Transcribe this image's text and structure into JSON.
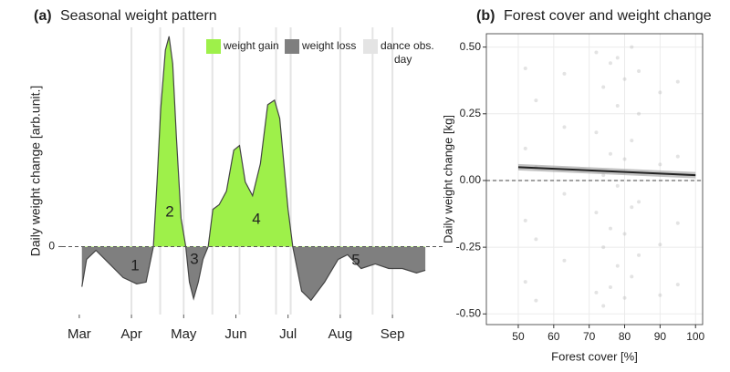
{
  "chart_data": [
    {
      "type": "area",
      "panel": "(a)",
      "title": "Seasonal weight pattern",
      "y_label": "Daily weight change [arb.unit.]",
      "x": [
        3.05,
        3.14,
        3.32,
        3.58,
        3.84,
        4.1,
        4.28,
        4.42,
        4.49,
        4.56,
        4.65,
        4.72,
        4.79,
        4.86,
        4.95,
        5.04,
        5.11,
        5.19,
        5.28,
        5.37,
        5.47,
        5.56,
        5.68,
        5.82,
        5.96,
        6.07,
        6.18,
        6.32,
        6.47,
        6.61,
        6.74,
        6.84,
        7.0,
        7.09,
        7.26,
        7.44,
        7.7,
        7.96,
        8.14,
        8.4,
        8.67,
        8.93,
        9.19,
        9.46,
        9.63
      ],
      "values": [
        -18.3,
        -5.8,
        -1.7,
        -7.9,
        -14.1,
        -17,
        -16.2,
        0,
        29.5,
        62.7,
        89.6,
        95.9,
        83.4,
        50.2,
        12.9,
        0,
        -16.2,
        -23.7,
        -16.2,
        -5.8,
        0,
        17,
        19.1,
        25.3,
        44,
        46.1,
        29.5,
        23.2,
        37.8,
        64.7,
        66.8,
        58.5,
        17,
        0,
        -20.3,
        -24.5,
        -16.2,
        -5.8,
        -3.7,
        -10,
        -7.9,
        -10,
        -10,
        -12,
        -10.8
      ],
      "series": [
        {
          "name": "weight gain",
          "color": "#9ef04a"
        },
        {
          "name": "weight loss",
          "color": "#7f7f7f"
        }
      ],
      "dance_days": [
        4.0,
        4.55,
        5.0,
        5.55,
        6.07,
        6.77,
        7.05,
        8.0,
        8.62,
        9.0
      ],
      "dance_label": "dance obs. day",
      "dance_color": "#e4e4e4",
      "annotations": [
        "1",
        "2",
        "3",
        "4",
        "5"
      ],
      "xlim": [
        2.67,
        9.96
      ],
      "xticks": [
        {
          "value": 3,
          "label": "Mar"
        },
        {
          "value": 4,
          "label": "Apr"
        },
        {
          "value": 5,
          "label": "May"
        },
        {
          "value": 6,
          "label": "Jun"
        },
        {
          "value": 7,
          "label": "Jul"
        },
        {
          "value": 8,
          "label": "Aug"
        },
        {
          "value": 9,
          "label": "Sep"
        }
      ],
      "ylim": [
        -31,
        100
      ],
      "yticks": [
        0
      ]
    },
    {
      "type": "scatter",
      "panel": "(b)",
      "title": "Forest cover and weight change",
      "x_label": "Forest cover [%]",
      "y_label": "Daily weight change [kg]",
      "x": [
        52,
        52,
        52,
        52,
        55,
        55,
        55,
        55,
        63,
        63,
        63,
        63,
        72,
        72,
        72,
        72,
        74,
        74,
        74,
        74,
        76,
        76,
        76,
        76,
        78,
        78,
        78,
        78,
        80,
        80,
        80,
        80,
        82,
        82,
        82,
        82,
        84,
        84,
        84,
        84,
        90,
        90,
        90,
        90,
        95,
        95,
        95,
        95
      ],
      "y": [
        0.42,
        0.12,
        -0.15,
        -0.38,
        0.3,
        0.05,
        -0.22,
        -0.45,
        0.2,
        -0.05,
        -0.3,
        0.4,
        0.48,
        0.18,
        -0.12,
        -0.42,
        0.35,
        0.02,
        -0.25,
        -0.47,
        0.44,
        0.1,
        -0.18,
        -0.4,
        0.28,
        -0.02,
        -0.32,
        0.46,
        0.38,
        0.08,
        -0.2,
        -0.44,
        0.5,
        0.15,
        -0.1,
        -0.36,
        0.25,
        -0.08,
        -0.28,
        0.41,
        0.33,
        0.06,
        -0.24,
        -0.43,
        0.37,
        0.09,
        -0.16,
        -0.39
      ],
      "color": "#b0b0b0",
      "fit": {
        "x": [
          50,
          100
        ],
        "y": [
          0.05,
          0.02
        ],
        "band": 0.012,
        "color": "#222222"
      },
      "xlim": [
        41,
        102
      ],
      "xticks": [
        50,
        60,
        70,
        80,
        90,
        100
      ],
      "ylim": [
        -0.54,
        0.55
      ],
      "yticks": [
        {
          "value": -0.5,
          "label": "-0.50"
        },
        {
          "value": -0.25,
          "label": "-0.25"
        },
        {
          "value": 0,
          "label": "0.00"
        },
        {
          "value": 0.25,
          "label": "0.25"
        },
        {
          "value": 0.5,
          "label": "0.50"
        }
      ],
      "grid": true
    }
  ]
}
